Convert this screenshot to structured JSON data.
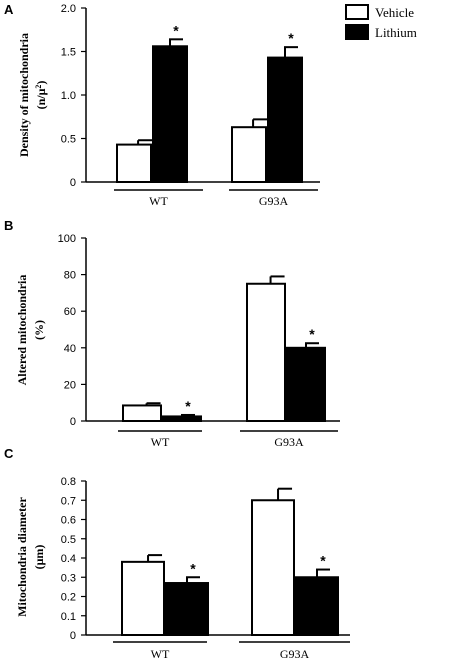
{
  "legend": {
    "entries": [
      {
        "label": "Vehicle",
        "fill": "#ffffff"
      },
      {
        "label": "Lithium",
        "fill": "#000000"
      }
    ],
    "placement": "top-right"
  },
  "chart_data": [
    {
      "type": "bar",
      "panel": "A",
      "categories": [
        "WT",
        "G93A"
      ],
      "series": [
        {
          "name": "Vehicle",
          "values": [
            0.43,
            0.63
          ],
          "errors": [
            0.05,
            0.09
          ],
          "significant": [
            false,
            false
          ]
        },
        {
          "name": "Lithium",
          "values": [
            1.56,
            1.43
          ],
          "errors": [
            0.08,
            0.12
          ],
          "significant": [
            true,
            true
          ]
        }
      ],
      "ylabel_line1": "Density of mitochondria",
      "ylabel_line2": "(n/μ",
      "ylabel_sup": "2",
      "ylabel_line2_end": ")",
      "ylim": [
        0,
        2.0
      ],
      "yticks": [
        "0",
        "0.5",
        "1.0",
        "1.5",
        "2.0"
      ],
      "ytick_values": [
        0,
        0.5,
        1.0,
        1.5,
        2.0
      ],
      "significance_marker": "*",
      "grid": false
    },
    {
      "type": "bar",
      "panel": "B",
      "categories": [
        "WT",
        "G93A"
      ],
      "series": [
        {
          "name": "Vehicle",
          "values": [
            8.5,
            75
          ],
          "errors": [
            1.2,
            4
          ],
          "significant": [
            false,
            false
          ]
        },
        {
          "name": "Lithium",
          "values": [
            2.5,
            40
          ],
          "errors": [
            0.8,
            2.5
          ],
          "significant": [
            true,
            true
          ]
        }
      ],
      "ylabel_line1": "Altered mitochondria",
      "ylabel_line2": "(%)",
      "ylim": [
        0,
        100
      ],
      "yticks": [
        "0",
        "20",
        "40",
        "60",
        "80",
        "100"
      ],
      "ytick_values": [
        0,
        20,
        40,
        60,
        80,
        100
      ],
      "significance_marker": "*",
      "grid": false
    },
    {
      "type": "bar",
      "panel": "C",
      "categories": [
        "WT",
        "G93A"
      ],
      "series": [
        {
          "name": "Vehicle",
          "values": [
            0.38,
            0.7
          ],
          "errors": [
            0.035,
            0.06
          ],
          "significant": [
            false,
            false
          ]
        },
        {
          "name": "Lithium",
          "values": [
            0.27,
            0.3
          ],
          "errors": [
            0.03,
            0.04
          ],
          "significant": [
            true,
            true
          ]
        }
      ],
      "ylabel_line1": "Mitochondria diameter",
      "ylabel_line2": "(μm)",
      "ylim": [
        0,
        0.8
      ],
      "yticks": [
        "0",
        "0.1",
        "0.2",
        "0.3",
        "0.4",
        "0.5",
        "0.6",
        "0.7",
        "0.8"
      ],
      "ytick_values": [
        0,
        0.1,
        0.2,
        0.3,
        0.4,
        0.5,
        0.6,
        0.7,
        0.8
      ],
      "significance_marker": "*",
      "grid": false
    }
  ]
}
